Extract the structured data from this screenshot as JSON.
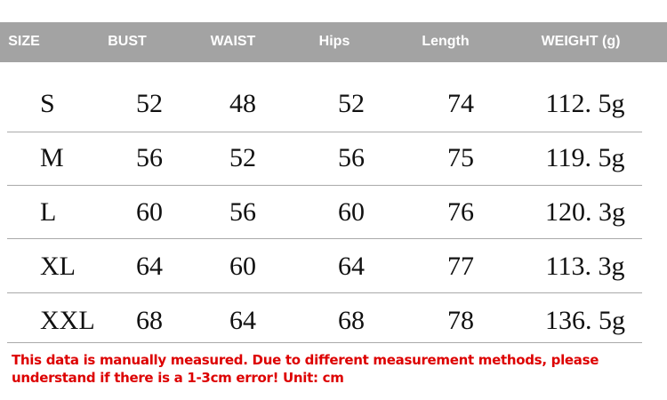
{
  "table": {
    "header": [
      "SIZE",
      "BUST",
      "WAIST",
      "Hips",
      "Length",
      "WEIGHT (g)"
    ],
    "rows": [
      [
        "S",
        "52",
        "48",
        "52",
        "74",
        "112. 5g"
      ],
      [
        "M",
        "56",
        "52",
        "56",
        "75",
        "119. 5g"
      ],
      [
        "L",
        "60",
        "56",
        "60",
        "76",
        "120. 3g"
      ],
      [
        "XL",
        "64",
        "60",
        "64",
        "77",
        "113. 3g"
      ],
      [
        "XXL",
        "68",
        "64",
        "68",
        "78",
        "136. 5g"
      ]
    ]
  },
  "note": [
    "This data is manually measured. Due to different measurement methods, please",
    "understand if there is a 1-3cm error! Unit: cm"
  ]
}
